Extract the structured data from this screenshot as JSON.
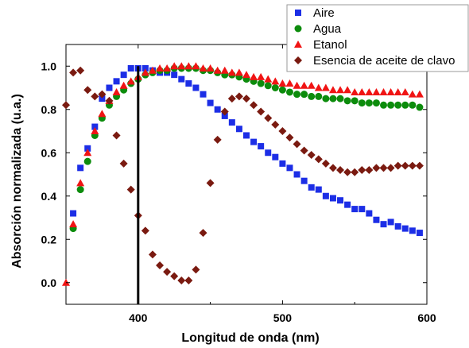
{
  "chart_data": {
    "type": "scatter",
    "title": "",
    "xlabel": "Longitud de onda (nm)",
    "ylabel": "Absorción normalizada (u.a.)",
    "xlim": [
      350,
      600
    ],
    "ylim": [
      -0.1,
      1.1
    ],
    "x_ticks": [
      400,
      500,
      600
    ],
    "y_ticks": [
      0.0,
      0.2,
      0.4,
      0.6,
      0.8,
      1.0
    ],
    "legend_position": "top-right",
    "grid": false,
    "vertical_line_x": 400,
    "series": [
      {
        "name": "Aire",
        "color": "#1c2ee6",
        "marker": "square",
        "points": [
          [
            355,
            0.32
          ],
          [
            360,
            0.53
          ],
          [
            365,
            0.62
          ],
          [
            370,
            0.72
          ],
          [
            375,
            0.85
          ],
          [
            380,
            0.9
          ],
          [
            385,
            0.93
          ],
          [
            390,
            0.96
          ],
          [
            395,
            0.99
          ],
          [
            400,
            0.99
          ],
          [
            405,
            0.99
          ],
          [
            410,
            0.98
          ],
          [
            415,
            0.97
          ],
          [
            420,
            0.97
          ],
          [
            425,
            0.96
          ],
          [
            430,
            0.94
          ],
          [
            435,
            0.92
          ],
          [
            440,
            0.9
          ],
          [
            445,
            0.87
          ],
          [
            450,
            0.83
          ],
          [
            455,
            0.8
          ],
          [
            460,
            0.77
          ],
          [
            465,
            0.74
          ],
          [
            470,
            0.71
          ],
          [
            475,
            0.68
          ],
          [
            480,
            0.65
          ],
          [
            485,
            0.63
          ],
          [
            490,
            0.6
          ],
          [
            495,
            0.58
          ],
          [
            500,
            0.55
          ],
          [
            505,
            0.53
          ],
          [
            510,
            0.5
          ],
          [
            515,
            0.47
          ],
          [
            520,
            0.44
          ],
          [
            525,
            0.43
          ],
          [
            530,
            0.4
          ],
          [
            535,
            0.39
          ],
          [
            540,
            0.38
          ],
          [
            545,
            0.36
          ],
          [
            550,
            0.34
          ],
          [
            555,
            0.34
          ],
          [
            560,
            0.32
          ],
          [
            565,
            0.29
          ],
          [
            570,
            0.27
          ],
          [
            575,
            0.28
          ],
          [
            580,
            0.26
          ],
          [
            585,
            0.25
          ],
          [
            590,
            0.24
          ],
          [
            595,
            0.23
          ]
        ]
      },
      {
        "name": "Agua",
        "color": "#0c8c0c",
        "marker": "circle",
        "points": [
          [
            355,
            0.25
          ],
          [
            360,
            0.43
          ],
          [
            365,
            0.56
          ],
          [
            370,
            0.68
          ],
          [
            375,
            0.76
          ],
          [
            380,
            0.82
          ],
          [
            385,
            0.86
          ],
          [
            390,
            0.89
          ],
          [
            395,
            0.92
          ],
          [
            400,
            0.94
          ],
          [
            405,
            0.96
          ],
          [
            410,
            0.97
          ],
          [
            415,
            0.98
          ],
          [
            420,
            0.98
          ],
          [
            425,
            0.99
          ],
          [
            430,
            0.99
          ],
          [
            435,
            0.99
          ],
          [
            440,
            0.99
          ],
          [
            445,
            0.98
          ],
          [
            450,
            0.98
          ],
          [
            455,
            0.97
          ],
          [
            460,
            0.96
          ],
          [
            465,
            0.96
          ],
          [
            470,
            0.95
          ],
          [
            475,
            0.94
          ],
          [
            480,
            0.93
          ],
          [
            485,
            0.92
          ],
          [
            490,
            0.91
          ],
          [
            495,
            0.9
          ],
          [
            500,
            0.89
          ],
          [
            505,
            0.88
          ],
          [
            510,
            0.87
          ],
          [
            515,
            0.87
          ],
          [
            520,
            0.86
          ],
          [
            525,
            0.86
          ],
          [
            530,
            0.85
          ],
          [
            535,
            0.85
          ],
          [
            540,
            0.85
          ],
          [
            545,
            0.84
          ],
          [
            550,
            0.84
          ],
          [
            555,
            0.83
          ],
          [
            560,
            0.83
          ],
          [
            565,
            0.83
          ],
          [
            570,
            0.82
          ],
          [
            575,
            0.82
          ],
          [
            580,
            0.82
          ],
          [
            585,
            0.82
          ],
          [
            590,
            0.82
          ],
          [
            595,
            0.81
          ]
        ]
      },
      {
        "name": "Etanol",
        "color": "#f01414",
        "marker": "triangle",
        "points": [
          [
            350,
            0.0
          ],
          [
            355,
            0.27
          ],
          [
            360,
            0.46
          ],
          [
            365,
            0.6
          ],
          [
            370,
            0.7
          ],
          [
            375,
            0.78
          ],
          [
            380,
            0.84
          ],
          [
            385,
            0.88
          ],
          [
            390,
            0.91
          ],
          [
            395,
            0.93
          ],
          [
            400,
            0.95
          ],
          [
            405,
            0.97
          ],
          [
            410,
            0.98
          ],
          [
            415,
            0.99
          ],
          [
            420,
            0.99
          ],
          [
            425,
            1.0
          ],
          [
            430,
            1.0
          ],
          [
            435,
            1.0
          ],
          [
            440,
            1.0
          ],
          [
            445,
            0.99
          ],
          [
            450,
            0.99
          ],
          [
            455,
            0.98
          ],
          [
            460,
            0.98
          ],
          [
            465,
            0.97
          ],
          [
            470,
            0.97
          ],
          [
            475,
            0.96
          ],
          [
            480,
            0.95
          ],
          [
            485,
            0.95
          ],
          [
            490,
            0.94
          ],
          [
            495,
            0.93
          ],
          [
            500,
            0.92
          ],
          [
            505,
            0.92
          ],
          [
            510,
            0.91
          ],
          [
            515,
            0.91
          ],
          [
            520,
            0.91
          ],
          [
            525,
            0.9
          ],
          [
            530,
            0.9
          ],
          [
            535,
            0.89
          ],
          [
            540,
            0.89
          ],
          [
            545,
            0.89
          ],
          [
            550,
            0.88
          ],
          [
            555,
            0.88
          ],
          [
            560,
            0.88
          ],
          [
            565,
            0.88
          ],
          [
            570,
            0.88
          ],
          [
            575,
            0.88
          ],
          [
            580,
            0.88
          ],
          [
            585,
            0.88
          ],
          [
            590,
            0.87
          ],
          [
            595,
            0.87
          ]
        ]
      },
      {
        "name": "Esencia de aceite de clavo",
        "color": "#7a1a10",
        "marker": "diamond",
        "points": [
          [
            350,
            0.82
          ],
          [
            355,
            0.97
          ],
          [
            360,
            0.98
          ],
          [
            365,
            0.89
          ],
          [
            370,
            0.86
          ],
          [
            375,
            0.87
          ],
          [
            380,
            0.84
          ],
          [
            385,
            0.68
          ],
          [
            390,
            0.55
          ],
          [
            395,
            0.43
          ],
          [
            400,
            0.31
          ],
          [
            405,
            0.24
          ],
          [
            410,
            0.13
          ],
          [
            415,
            0.08
          ],
          [
            420,
            0.05
          ],
          [
            425,
            0.03
          ],
          [
            430,
            0.01
          ],
          [
            435,
            0.01
          ],
          [
            440,
            0.06
          ],
          [
            445,
            0.23
          ],
          [
            450,
            0.46
          ],
          [
            455,
            0.66
          ],
          [
            460,
            0.79
          ],
          [
            465,
            0.85
          ],
          [
            470,
            0.86
          ],
          [
            475,
            0.85
          ],
          [
            480,
            0.82
          ],
          [
            485,
            0.79
          ],
          [
            490,
            0.76
          ],
          [
            495,
            0.73
          ],
          [
            500,
            0.7
          ],
          [
            505,
            0.67
          ],
          [
            510,
            0.64
          ],
          [
            515,
            0.61
          ],
          [
            520,
            0.59
          ],
          [
            525,
            0.57
          ],
          [
            530,
            0.55
          ],
          [
            535,
            0.53
          ],
          [
            540,
            0.52
          ],
          [
            545,
            0.51
          ],
          [
            550,
            0.51
          ],
          [
            555,
            0.52
          ],
          [
            560,
            0.52
          ],
          [
            565,
            0.53
          ],
          [
            570,
            0.53
          ],
          [
            575,
            0.53
          ],
          [
            580,
            0.54
          ],
          [
            585,
            0.54
          ],
          [
            590,
            0.54
          ],
          [
            595,
            0.54
          ]
        ]
      }
    ]
  }
}
